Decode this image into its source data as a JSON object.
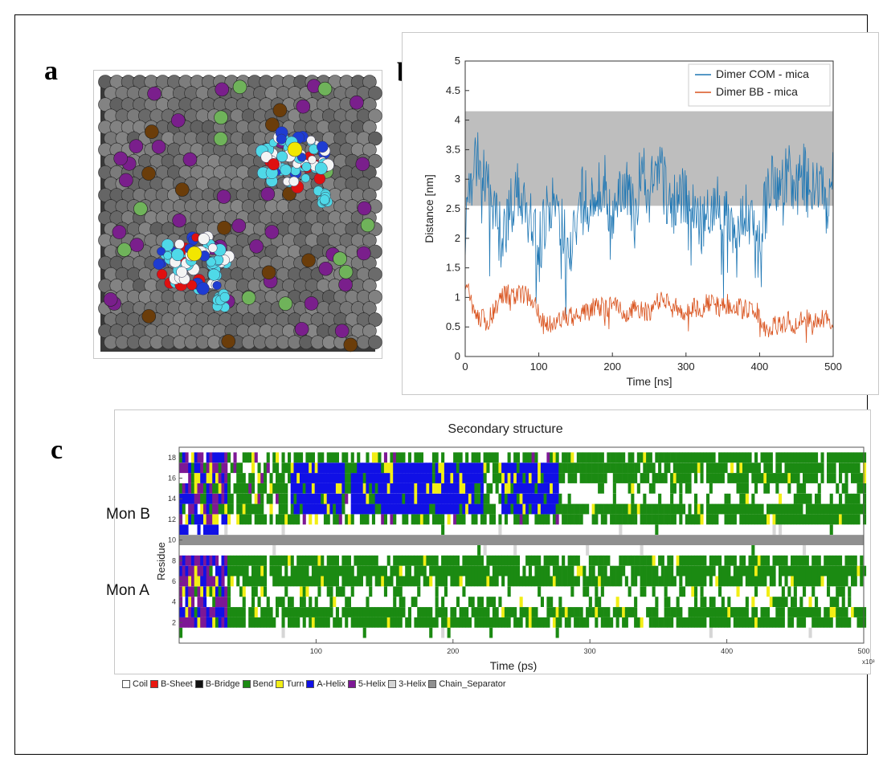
{
  "panels": {
    "a": "a",
    "b": "b",
    "c": "c"
  },
  "panel_a": {
    "colors": {
      "surface": "#6e6e6e",
      "purple": "#7a1f8c",
      "brown": "#6b3d0a",
      "green": "#6fb35a",
      "cyan": "#4fd9e8",
      "red": "#e01010",
      "white": "#f4f4f4",
      "blue": "#1e3cd2",
      "yellow": "#f2e600"
    }
  },
  "chart_data": [
    {
      "type": "line",
      "xlabel": "Time [ns]",
      "ylabel": "Distance [nm]",
      "xlim": [
        0,
        500
      ],
      "ylim": [
        0,
        5
      ],
      "xticks": [
        "0",
        "100",
        "200",
        "300",
        "400",
        "500"
      ],
      "yticks": [
        "0",
        "0.5",
        "1",
        "1.5",
        "2",
        "2.5",
        "3",
        "3.5",
        "4",
        "4.5",
        "5"
      ],
      "shaded_band": {
        "y0": 2.55,
        "y1": 4.15,
        "color": "#bebebe"
      },
      "grid": false,
      "legend_position": "top-right",
      "series": [
        {
          "name": "Dimer COM - mica",
          "color": "#1f77b4",
          "x": [
            0,
            10,
            20,
            30,
            40,
            50,
            60,
            70,
            80,
            90,
            100,
            110,
            120,
            130,
            140,
            150,
            160,
            170,
            180,
            190,
            200,
            210,
            220,
            230,
            240,
            250,
            260,
            270,
            280,
            290,
            300,
            310,
            320,
            330,
            340,
            350,
            360,
            370,
            380,
            390,
            400,
            410,
            420,
            430,
            440,
            450,
            460,
            470,
            480,
            490,
            500
          ],
          "y": [
            2.2,
            3.0,
            3.5,
            2.8,
            2.3,
            2.0,
            2.4,
            2.9,
            2.6,
            2.2,
            1.9,
            2.4,
            2.6,
            2.2,
            1.8,
            2.1,
            2.8,
            2.5,
            2.7,
            2.9,
            2.4,
            2.6,
            2.8,
            2.3,
            3.2,
            2.6,
            3.4,
            2.9,
            2.4,
            2.8,
            2.7,
            2.5,
            2.2,
            2.5,
            2.8,
            2.4,
            2.2,
            2.0,
            2.6,
            2.3,
            2.1,
            2.6,
            3.0,
            2.8,
            3.2,
            2.9,
            3.1,
            2.7,
            2.9,
            2.6,
            3.0
          ]
        },
        {
          "name": "Dimer BB - mica",
          "color": "#d9531e",
          "x": [
            0,
            10,
            20,
            30,
            40,
            50,
            60,
            70,
            80,
            90,
            100,
            110,
            120,
            130,
            140,
            150,
            160,
            170,
            180,
            190,
            200,
            210,
            220,
            230,
            240,
            250,
            260,
            270,
            280,
            290,
            300,
            310,
            320,
            330,
            340,
            350,
            360,
            370,
            380,
            390,
            400,
            410,
            420,
            430,
            440,
            450,
            460,
            470,
            480,
            490,
            500
          ],
          "y": [
            1.3,
            0.8,
            0.65,
            0.6,
            0.8,
            1.0,
            1.05,
            1.05,
            1.05,
            1.0,
            0.7,
            0.6,
            0.55,
            0.6,
            0.7,
            0.65,
            0.75,
            0.85,
            0.85,
            0.8,
            0.85,
            0.8,
            0.75,
            0.8,
            0.8,
            0.7,
            0.9,
            1.0,
            0.85,
            0.8,
            0.75,
            0.85,
            0.8,
            0.9,
            0.85,
            0.85,
            0.9,
            0.85,
            0.8,
            0.8,
            0.7,
            0.5,
            0.5,
            0.55,
            0.6,
            0.55,
            0.6,
            0.65,
            0.6,
            0.65,
            0.6
          ]
        }
      ]
    },
    {
      "type": "heatmap",
      "title": "Secondary structure",
      "xlabel": "Time (ps)",
      "ylabel": "Residue",
      "x_multiplier": "x10³",
      "xlim": [
        0,
        500
      ],
      "xticks": [
        "100",
        "200",
        "300",
        "400",
        "500"
      ],
      "yticks": [
        "2",
        "4",
        "6",
        "8",
        "10",
        "12",
        "14",
        "16",
        "18"
      ],
      "row_labels": [
        "Mon B",
        "Mon A"
      ],
      "legend": [
        {
          "label": "Coil",
          "color": "#ffffff"
        },
        {
          "label": "B-Sheet",
          "color": "#e8170f"
        },
        {
          "label": "B-Bridge",
          "color": "#111111"
        },
        {
          "label": "Bend",
          "color": "#1b8a12"
        },
        {
          "label": "Turn",
          "color": "#f2ee15"
        },
        {
          "label": "A-Helix",
          "color": "#1010e6"
        },
        {
          "label": "5-Helix",
          "color": "#7d1895"
        },
        {
          "label": "3-Helix",
          "color": "#d6d6d6"
        },
        {
          "label": "Chain_Separator",
          "color": "#909090"
        }
      ]
    }
  ]
}
